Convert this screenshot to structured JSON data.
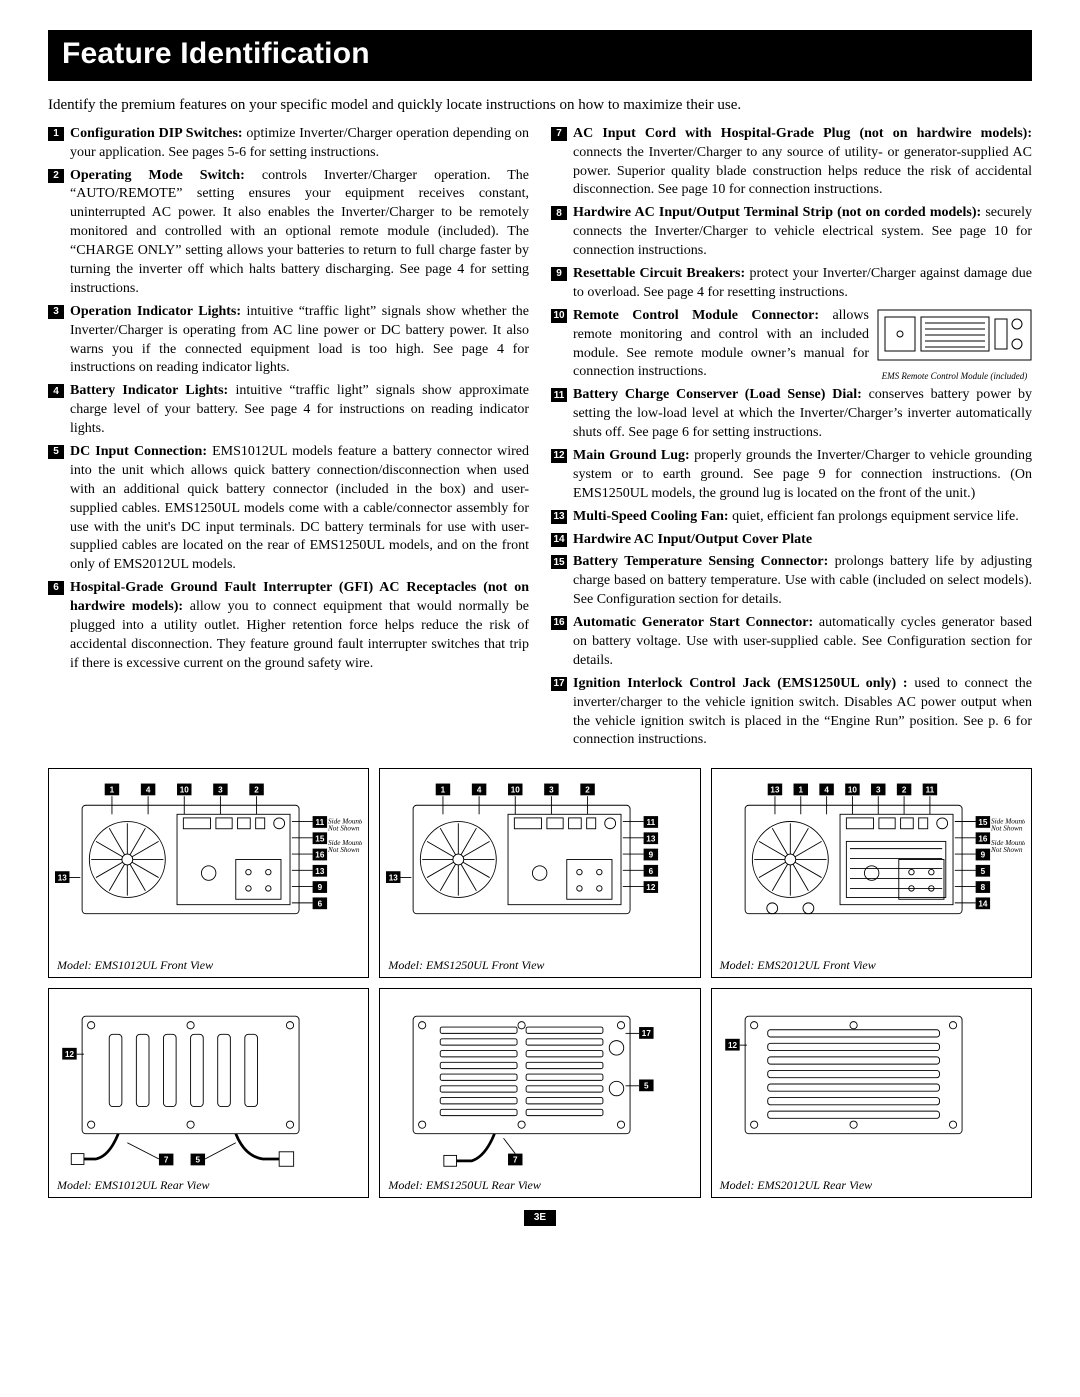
{
  "title": "Feature Identification",
  "lead": "Identify the premium features on your specific model and quickly locate instructions on how to maximize their use.",
  "module_caption": "EMS Remote Control Module (included)",
  "page_number": "3E",
  "features_left": [
    {
      "n": "1",
      "title": "Configuration DIP Switches:",
      "text": " optimize Inverter/Charger operation depending on your application. See pages 5-6 for setting instructions."
    },
    {
      "n": "2",
      "title": "Operating Mode Switch:",
      "text": " controls Inverter/Charger operation. The “AUTO/REMOTE” setting ensures your equipment receives constant, uninterrupted AC power. It also enables the Inverter/Charger to be remotely monitored and controlled with an optional remote module (included). The “CHARGE ONLY” setting allows your batteries to return to full charge faster by turning the inverter off which halts battery discharging. See page 4 for setting instructions."
    },
    {
      "n": "3",
      "title": "Operation Indicator Lights:",
      "text": " intuitive “traffic light” signals show whether the Inverter/Charger is operating from AC line power or DC battery power. It also warns you if the connected equipment load is too high. See page 4 for instructions on reading indicator lights."
    },
    {
      "n": "4",
      "title": "Battery Indicator Lights:",
      "text": " intuitive “traffic light” signals show approximate charge level of your battery. See page 4 for instructions on reading indicator lights."
    },
    {
      "n": "5",
      "title": "DC Input Connection:",
      "text": " EMS1012UL models feature a battery connector wired into the unit which allows quick battery connection/disconnection when used with an additional quick battery connector (included in the box) and user-supplied cables. EMS1250UL models come with a cable/connector assembly for use with the unit's DC input terminals. DC battery terminals for use with user-supplied cables are located on the rear of EMS1250UL models, and on the front only of EMS2012UL models."
    },
    {
      "n": "6",
      "title": "Hospital-Grade Ground Fault Interrupter (GFI) AC Receptacles (not on hardwire models):",
      "text": " allow you to connect equipment that would normally be plugged into a utility outlet. Higher retention force helps reduce the risk of accidental disconnection. They feature ground fault interrupter switches that trip if there is excessive current on the ground safety wire."
    }
  ],
  "features_right": [
    {
      "n": "7",
      "title": "AC Input Cord with Hospital-Grade Plug (not on hardwire models):",
      "text": " connects the Inverter/Charger to any source of utility- or generator-supplied AC power. Superior quality blade construction helps reduce the risk of accidental disconnection. See page 10 for connection instructions."
    },
    {
      "n": "8",
      "title": "Hardwire AC Input/Output Terminal Strip (not on corded models):",
      "text": " securely connects the Inverter/Charger to vehicle electrical system. See page 10 for connection instructions."
    },
    {
      "n": "9",
      "title": "Resettable Circuit Breakers:",
      "text": " protect your Inverter/Charger against damage due to overload. See page 4 for resetting instructions."
    },
    {
      "n": "10",
      "title": "Remote Control Module Connector:",
      "text": " allows remote monitoring and control with an included module. See remote module owner’s manual for connection instructions.",
      "has_figure": true
    },
    {
      "n": "11",
      "title": "Battery Charge Conserver (Load Sense) Dial:",
      "text": " conserves battery power by setting the low-load level at which the Inverter/Charger’s inverter automatically shuts off. See page 6 for setting instructions."
    },
    {
      "n": "12",
      "title": "Main Ground Lug:",
      "text": " properly grounds the Inverter/Charger to vehicle grounding system or to earth ground. See page 9 for connection instructions. (On EMS1250UL models, the ground lug is located on the front of the unit.)"
    },
    {
      "n": "13",
      "title": "Multi-Speed Cooling Fan:",
      "text": " quiet, efficient fan prolongs equipment service life."
    },
    {
      "n": "14",
      "title": "Hardwire AC Input/Output Cover Plate",
      "text": ""
    },
    {
      "n": "15",
      "title": "Battery Temperature Sensing Connector:",
      "text": " prolongs battery life by adjusting charge based on battery temperature. Use with cable (included on select models). See Configuration section for details."
    },
    {
      "n": "16",
      "title": "Automatic Generator Start Connector:",
      "text": " automatically cycles generator based on battery voltage. Use with user-supplied cable. See Configuration section for details."
    },
    {
      "n": "17",
      "title": "Ignition Interlock Control Jack (EMS1250UL only) :",
      "text": " used to connect the inverter/charger to the vehicle ignition switch. Disables AC power output when the vehicle ignition switch is placed in the “Engine Run” position. See p. 6 for connection instructions."
    }
  ],
  "diagrams": [
    {
      "caption": "Model: EMS1012UL Front View",
      "top_nums": [
        "1",
        "4",
        "10",
        "3",
        "2"
      ],
      "side_nums": [
        "11",
        "15",
        "16",
        "13",
        "9",
        "6"
      ],
      "side_notes": [
        "Side Mounted, Not Shown",
        "Side Mounted, Not Shown"
      ]
    },
    {
      "caption": "Model: EMS1250UL Front View",
      "top_nums": [
        "1",
        "4",
        "10",
        "3",
        "2"
      ],
      "side_nums": [
        "11",
        "13",
        "9",
        "6",
        "12"
      ],
      "side_notes": []
    },
    {
      "caption": "Model: EMS2012UL Front View",
      "top_nums": [
        "13",
        "1",
        "4",
        "10",
        "3",
        "2",
        "11"
      ],
      "side_nums": [
        "15",
        "16",
        "9",
        "5",
        "8",
        "14"
      ],
      "side_notes": [
        "Side Mounted, Not Shown",
        "Side Mounted, Not Shown"
      ]
    },
    {
      "caption": "Model: EMS1012UL Rear View",
      "top_nums": [],
      "side_nums": [
        "12",
        "7",
        "5"
      ],
      "side_notes": []
    },
    {
      "caption": "Model: EMS1250UL Rear View",
      "top_nums": [],
      "side_nums": [
        "17",
        "5",
        "7"
      ],
      "side_notes": []
    },
    {
      "caption": "Model: EMS2012UL Rear View",
      "top_nums": [],
      "side_nums": [
        "12"
      ],
      "side_notes": []
    }
  ]
}
